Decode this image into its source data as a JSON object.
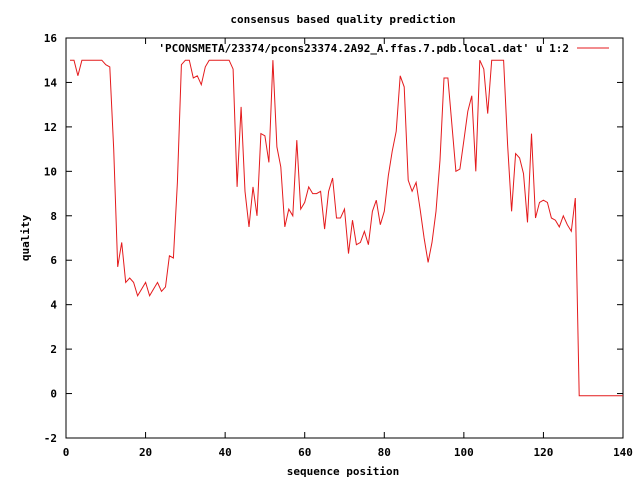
{
  "chart_data": {
    "type": "line",
    "title": "consensus based quality prediction",
    "xlabel": "sequence position",
    "ylabel": "quality",
    "xlim": [
      0,
      140
    ],
    "ylim": [
      -2,
      16
    ],
    "xticks": [
      "0",
      "20",
      "40",
      "60",
      "80",
      "100",
      "120",
      "140"
    ],
    "yticks": [
      "-2",
      "0",
      "2",
      "4",
      "6",
      "8",
      "10",
      "12",
      "14",
      "16"
    ],
    "grid": false,
    "legend_position": "top-right",
    "series": [
      {
        "name": "'PCONSMETA/23374/pcons23374.2A92_A.ffas.7.pdb.local.dat' u 1:2",
        "color": "#e41a1c",
        "x": [
          1,
          2,
          3,
          4,
          5,
          6,
          7,
          8,
          9,
          10,
          11,
          12,
          13,
          14,
          15,
          16,
          17,
          18,
          19,
          20,
          21,
          22,
          23,
          24,
          25,
          26,
          27,
          28,
          29,
          30,
          31,
          32,
          33,
          34,
          35,
          36,
          37,
          38,
          39,
          40,
          41,
          42,
          43,
          44,
          45,
          46,
          47,
          48,
          49,
          50,
          51,
          52,
          53,
          54,
          55,
          56,
          57,
          58,
          59,
          60,
          61,
          62,
          63,
          64,
          65,
          66,
          67,
          68,
          69,
          70,
          71,
          72,
          73,
          74,
          75,
          76,
          77,
          78,
          79,
          80,
          81,
          82,
          83,
          84,
          85,
          86,
          87,
          88,
          89,
          90,
          91,
          92,
          93,
          94,
          95,
          96,
          97,
          98,
          99,
          100,
          101,
          102,
          103,
          104,
          105,
          106,
          107,
          108,
          109,
          110,
          111,
          112,
          113,
          114,
          115,
          116,
          117,
          118,
          119,
          120,
          121,
          122,
          123,
          124,
          125,
          126,
          127,
          128,
          129,
          130,
          131,
          132,
          133,
          134,
          135,
          136,
          137,
          138,
          139,
          140
        ],
        "values": [
          15.0,
          15.0,
          14.3,
          15.0,
          15.0,
          15.0,
          15.0,
          15.0,
          15.0,
          14.8,
          14.7,
          11.0,
          5.7,
          6.8,
          5.0,
          5.2,
          5.0,
          4.4,
          4.7,
          5.0,
          4.4,
          4.7,
          5.0,
          4.6,
          4.8,
          6.2,
          6.1,
          9.5,
          14.8,
          15.0,
          15.0,
          14.2,
          14.3,
          13.9,
          14.7,
          15.0,
          15.0,
          15.0,
          15.0,
          15.0,
          15.0,
          14.6,
          9.3,
          12.9,
          9.1,
          7.5,
          9.3,
          8.0,
          11.7,
          11.6,
          10.4,
          15.0,
          11.1,
          10.2,
          7.5,
          8.3,
          8.0,
          11.4,
          8.3,
          8.6,
          9.3,
          9.0,
          9.0,
          9.1,
          7.4,
          9.1,
          9.7,
          7.9,
          7.9,
          8.3,
          6.3,
          7.8,
          6.7,
          6.8,
          7.3,
          6.7,
          8.2,
          8.7,
          7.6,
          8.2,
          9.8,
          10.9,
          11.8,
          14.3,
          13.8,
          9.6,
          9.1,
          9.5,
          8.3,
          7.0,
          5.9,
          6.8,
          8.2,
          10.5,
          14.2,
          14.2,
          12.1,
          10.0,
          10.1,
          11.4,
          12.7,
          13.4,
          10.0,
          15.0,
          14.6,
          12.6,
          15.0,
          15.0,
          15.0,
          15.0,
          11.2,
          8.2,
          10.8,
          10.6,
          9.9,
          7.7,
          11.7,
          7.9,
          8.6,
          8.7,
          8.6,
          7.9,
          7.8,
          7.5,
          8.0,
          7.6,
          7.3,
          8.8,
          -0.1,
          -0.1,
          -0.1,
          -0.1,
          -0.1,
          -0.1,
          -0.1,
          -0.1,
          -0.1,
          -0.1,
          -0.1,
          -0.1
        ]
      }
    ]
  }
}
